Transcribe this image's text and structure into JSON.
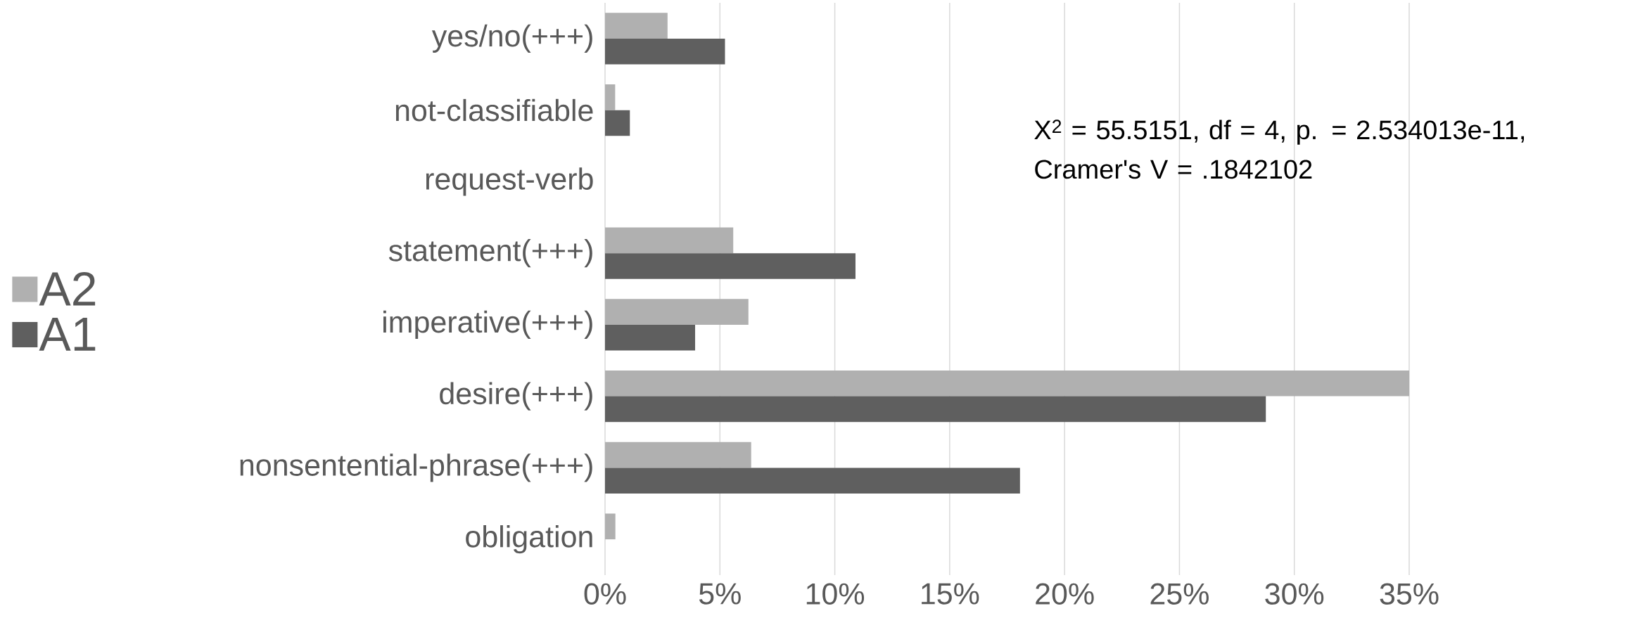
{
  "chart_data": {
    "type": "bar",
    "orientation": "horizontal",
    "categories": [
      "yes/no(+++)",
      "not-classifiable",
      "request-verb",
      "statement(+++)",
      "imperative(+++)",
      "desire(+++)",
      "nonsentential-phrase(+++)",
      "obligation"
    ],
    "series": [
      {
        "name": "A2",
        "color": "#b0b0b0",
        "values": [
          2.72,
          0.44,
          0,
          5.58,
          6.24,
          35.0,
          6.36,
          0.45
        ]
      },
      {
        "name": "A1",
        "color": "#5f5f5f",
        "values": [
          5.22,
          1.08,
          0,
          10.9,
          3.92,
          28.76,
          18.06,
          0
        ]
      }
    ],
    "xlim": [
      0,
      35
    ],
    "xticks": [
      {
        "value": 0,
        "label": "0%"
      },
      {
        "value": 5,
        "label": "5%"
      },
      {
        "value": 10,
        "label": "10%"
      },
      {
        "value": 15,
        "label": "15%"
      },
      {
        "value": 20,
        "label": "20%"
      },
      {
        "value": 25,
        "label": "25%"
      },
      {
        "value": 30,
        "label": "30%"
      },
      {
        "value": 35,
        "label": "35%"
      }
    ],
    "grid": "x",
    "legend": "left",
    "annotations": [
      "X$^{2}$ = 55.5151, df = 4, p. = 2.534013e-11, Cramer's V = .1842102"
    ]
  }
}
